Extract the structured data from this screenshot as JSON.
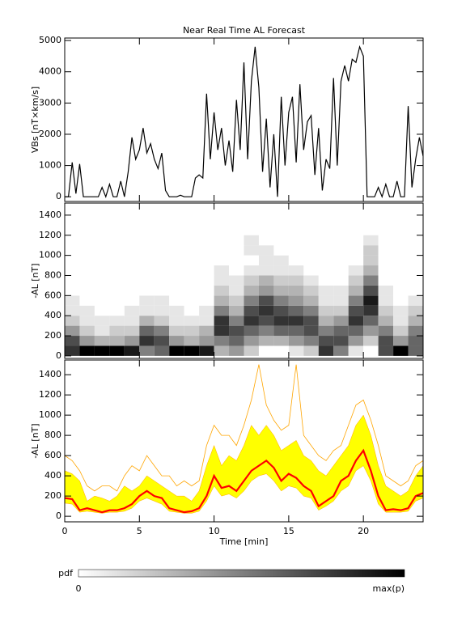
{
  "chart_data": [
    {
      "type": "line",
      "title": "Near Real Time AL Forecast",
      "y_label": "VBs [nT×km/s]",
      "color": "#000000",
      "xlim": [
        0,
        24
      ],
      "xticks": [
        0,
        5,
        10,
        15,
        20
      ],
      "xtick_labels": false,
      "ylim": [
        -150,
        5080
      ],
      "yticks": [
        0,
        1000,
        2000,
        3000,
        4000,
        5000
      ],
      "x": [
        0,
        0.25,
        0.5,
        0.75,
        1,
        1.25,
        1.5,
        1.75,
        2,
        2.25,
        2.5,
        2.75,
        3,
        3.25,
        3.5,
        3.75,
        4,
        4.25,
        4.5,
        4.75,
        5,
        5.25,
        5.5,
        5.75,
        6,
        6.25,
        6.5,
        6.75,
        7,
        7.25,
        7.5,
        7.75,
        8,
        8.25,
        8.5,
        8.75,
        9,
        9.25,
        9.5,
        9.75,
        10,
        10.25,
        10.5,
        10.75,
        11,
        11.25,
        11.5,
        11.75,
        12,
        12.25,
        12.5,
        12.75,
        13,
        13.25,
        13.5,
        13.75,
        14,
        14.25,
        14.5,
        14.75,
        15,
        15.25,
        15.5,
        15.75,
        16,
        16.25,
        16.5,
        16.75,
        17,
        17.25,
        17.5,
        17.75,
        18,
        18.25,
        18.5,
        18.75,
        19,
        19.25,
        19.5,
        19.75,
        20,
        20.25,
        20.5,
        20.75,
        21,
        21.25,
        21.5,
        21.75,
        22,
        22.25,
        22.5,
        22.75,
        23,
        23.25,
        23.5,
        23.75,
        24
      ],
      "values": [
        0,
        0,
        1100,
        100,
        1050,
        0,
        0,
        0,
        0,
        0,
        300,
        0,
        400,
        0,
        0,
        500,
        0,
        800,
        1900,
        1200,
        1500,
        2200,
        1400,
        1700,
        1200,
        900,
        1400,
        200,
        0,
        0,
        0,
        50,
        0,
        0,
        0,
        600,
        700,
        600,
        3300,
        1200,
        2700,
        1500,
        2200,
        1000,
        1800,
        800,
        3100,
        1500,
        4300,
        1200,
        3700,
        4800,
        3500,
        800,
        2500,
        300,
        2000,
        0,
        3200,
        1000,
        2700,
        3200,
        1100,
        3600,
        1500,
        2400,
        2600,
        700,
        2200,
        200,
        1200,
        900,
        3800,
        1000,
        3700,
        4200,
        3700,
        4400,
        4300,
        4800,
        4500,
        0,
        0,
        0,
        300,
        0,
        400,
        0,
        0,
        500,
        0,
        0,
        2900,
        300,
        1200,
        1900,
        1300
      ]
    },
    {
      "type": "heatmap",
      "y_label": "-AL [nT]",
      "xlim": [
        0,
        24
      ],
      "xticks": [
        0,
        5,
        10,
        15,
        20
      ],
      "xtick_labels": false,
      "ylim": [
        -25,
        1520
      ],
      "yticks": [
        0,
        200,
        400,
        600,
        800,
        1000,
        1200,
        1400
      ],
      "x_bins": [
        0,
        1,
        2,
        3,
        4,
        5,
        6,
        7,
        8,
        9,
        10,
        11,
        12,
        13,
        14,
        15,
        16,
        17,
        18,
        19,
        20,
        21,
        22,
        23,
        24
      ],
      "y_bins": [
        0,
        100,
        200,
        300,
        400,
        500,
        600,
        700,
        800,
        900,
        1000,
        1100,
        1200
      ],
      "z": [
        [
          0.8,
          0.7,
          0.4,
          0.2,
          0.1,
          0.1,
          0,
          0,
          0,
          0,
          0,
          0
        ],
        [
          1,
          0.4,
          0.2,
          0.1,
          0.1,
          0,
          0,
          0,
          0,
          0,
          0,
          0
        ],
        [
          1,
          0.3,
          0.1,
          0.1,
          0,
          0,
          0,
          0,
          0,
          0,
          0,
          0
        ],
        [
          1,
          0.3,
          0.2,
          0.1,
          0,
          0,
          0,
          0,
          0,
          0,
          0,
          0
        ],
        [
          0.9,
          0.4,
          0.2,
          0.1,
          0.1,
          0,
          0,
          0,
          0,
          0,
          0,
          0
        ],
        [
          0.5,
          0.8,
          0.6,
          0.3,
          0.1,
          0.1,
          0,
          0,
          0,
          0,
          0,
          0
        ],
        [
          0.6,
          0.7,
          0.5,
          0.2,
          0.1,
          0.1,
          0,
          0,
          0,
          0,
          0,
          0
        ],
        [
          1,
          0.4,
          0.2,
          0.1,
          0.1,
          0,
          0,
          0,
          0,
          0,
          0,
          0
        ],
        [
          1,
          0.3,
          0.2,
          0.1,
          0,
          0,
          0,
          0,
          0,
          0,
          0,
          0
        ],
        [
          0.9,
          0.4,
          0.3,
          0.1,
          0.1,
          0,
          0,
          0,
          0,
          0,
          0,
          0
        ],
        [
          0.3,
          0.5,
          0.8,
          0.8,
          0.5,
          0.3,
          0.2,
          0.1,
          0.1,
          0,
          0,
          0
        ],
        [
          0.4,
          0.6,
          0.7,
          0.5,
          0.3,
          0.2,
          0.1,
          0.1,
          0,
          0,
          0,
          0
        ],
        [
          0.2,
          0.4,
          0.6,
          0.8,
          0.7,
          0.5,
          0.3,
          0.2,
          0.1,
          0,
          0.1,
          0.1
        ],
        [
          0,
          0.3,
          0.5,
          0.7,
          0.8,
          0.7,
          0.4,
          0.3,
          0.1,
          0.1,
          0.1,
          0
        ],
        [
          0,
          0.3,
          0.6,
          0.8,
          0.7,
          0.5,
          0.3,
          0.2,
          0.1,
          0.1,
          0,
          0
        ],
        [
          0.1,
          0.4,
          0.6,
          0.8,
          0.6,
          0.4,
          0.3,
          0.2,
          0.1,
          0,
          0,
          0
        ],
        [
          0.2,
          0.5,
          0.7,
          0.7,
          0.5,
          0.3,
          0.2,
          0.1,
          0,
          0,
          0,
          0
        ],
        [
          0.8,
          0.7,
          0.5,
          0.3,
          0.2,
          0.1,
          0.1,
          0,
          0,
          0,
          0,
          0
        ],
        [
          0.5,
          0.7,
          0.6,
          0.4,
          0.2,
          0.1,
          0.1,
          0,
          0,
          0,
          0,
          0
        ],
        [
          0.1,
          0.4,
          0.6,
          0.8,
          0.7,
          0.5,
          0.3,
          0.2,
          0.1,
          0,
          0,
          0
        ],
        [
          0,
          0.2,
          0.4,
          0.6,
          0.8,
          0.9,
          0.7,
          0.5,
          0.3,
          0.2,
          0.2,
          0.1
        ],
        [
          0.7,
          0.7,
          0.5,
          0.3,
          0.2,
          0.1,
          0.1,
          0,
          0,
          0,
          0,
          0
        ],
        [
          1,
          0.4,
          0.2,
          0.1,
          0.1,
          0,
          0,
          0,
          0,
          0,
          0,
          0
        ],
        [
          0.6,
          0.6,
          0.5,
          0.3,
          0.2,
          0.1,
          0,
          0,
          0,
          0,
          0,
          0
        ]
      ],
      "colorbar": {
        "label": "pdf",
        "min_label": "0",
        "max_label": "max(p)"
      }
    },
    {
      "type": "band",
      "y_label": "-AL [nT]",
      "x_label": "Time [min]",
      "xlim": [
        0,
        24
      ],
      "xticks": [
        0,
        5,
        10,
        15,
        20
      ],
      "xtick_labels": true,
      "ylim": [
        -55,
        1545
      ],
      "yticks": [
        0,
        200,
        400,
        600,
        800,
        1000,
        1200,
        1400
      ],
      "x": [
        0,
        0.5,
        1,
        1.5,
        2,
        2.5,
        3,
        3.5,
        4,
        4.5,
        5,
        5.5,
        6,
        6.5,
        7,
        7.5,
        8,
        8.5,
        9,
        9.5,
        10,
        10.5,
        11,
        11.5,
        12,
        12.5,
        13,
        13.5,
        14,
        14.5,
        15,
        15.5,
        16,
        16.5,
        17,
        17.5,
        18,
        18.5,
        19,
        19.5,
        20,
        20.5,
        21,
        21.5,
        22,
        22.5,
        23,
        23.5,
        24
      ],
      "upper": {
        "color": "#ffa500",
        "values": [
          600,
          550,
          450,
          300,
          250,
          300,
          300,
          250,
          400,
          500,
          450,
          600,
          500,
          400,
          400,
          300,
          350,
          300,
          350,
          700,
          900,
          800,
          800,
          700,
          900,
          1150,
          1500,
          1100,
          950,
          850,
          900,
          1500,
          800,
          700,
          600,
          550,
          650,
          700,
          900,
          1100,
          1150,
          950,
          700,
          400,
          350,
          300,
          350,
          500,
          550
        ]
      },
      "band": {
        "color": "#ffff00",
        "high": [
          450,
          420,
          350,
          150,
          200,
          180,
          150,
          200,
          300,
          250,
          300,
          400,
          350,
          300,
          250,
          200,
          200,
          150,
          250,
          500,
          700,
          500,
          600,
          550,
          700,
          900,
          800,
          900,
          800,
          650,
          700,
          750,
          600,
          550,
          450,
          400,
          500,
          600,
          700,
          900,
          1000,
          800,
          500,
          300,
          250,
          200,
          250,
          400,
          500
        ],
        "low": [
          130,
          120,
          40,
          50,
          40,
          30,
          40,
          40,
          50,
          80,
          150,
          180,
          150,
          120,
          50,
          40,
          30,
          30,
          50,
          150,
          300,
          200,
          220,
          180,
          250,
          350,
          400,
          420,
          350,
          250,
          300,
          280,
          200,
          180,
          60,
          100,
          150,
          250,
          300,
          450,
          500,
          350,
          120,
          40,
          40,
          40,
          50,
          150,
          180
        ]
      },
      "median": {
        "color": "#ff0000",
        "values": [
          180,
          170,
          60,
          80,
          60,
          40,
          60,
          60,
          80,
          120,
          200,
          250,
          200,
          180,
          80,
          60,
          40,
          50,
          80,
          200,
          400,
          280,
          300,
          250,
          350,
          450,
          500,
          550,
          480,
          350,
          420,
          380,
          300,
          250,
          100,
          150,
          200,
          350,
          400,
          550,
          650,
          450,
          200,
          60,
          70,
          60,
          80,
          200,
          230
        ]
      }
    }
  ]
}
